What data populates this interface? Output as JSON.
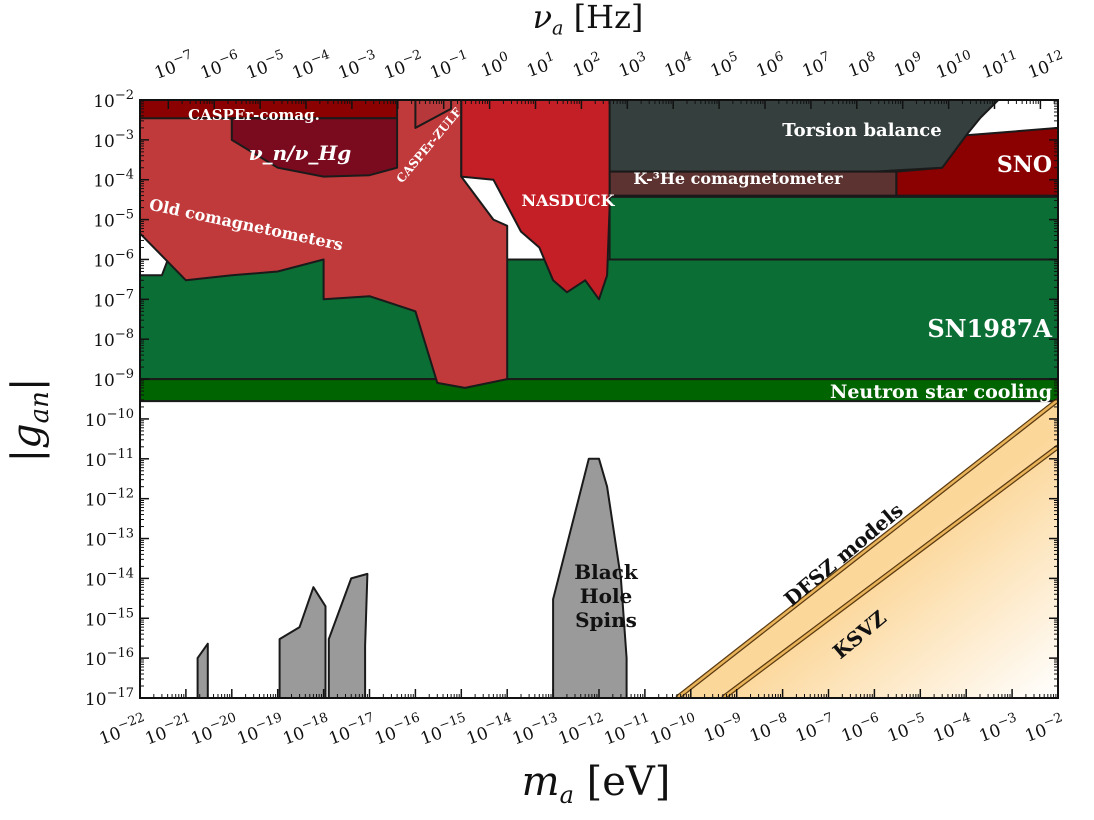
{
  "chart_data": {
    "type": "area",
    "xlabel": "m_a [eV]",
    "x2label": "ν_a [Hz]",
    "ylabel": "|g_an|",
    "x_scale": "log",
    "y_scale": "log",
    "xlim": [
      1e-22,
      0.01
    ],
    "ylim": [
      1e-17,
      0.01
    ],
    "x2lim": [
      1e-07,
      1000000000000.0
    ],
    "x_ticks": [
      "10^-22",
      "10^-21",
      "10^-20",
      "10^-19",
      "10^-18",
      "10^-17",
      "10^-16",
      "10^-15",
      "10^-14",
      "10^-13",
      "10^-12",
      "10^-11",
      "10^-10",
      "10^-9",
      "10^-8",
      "10^-7",
      "10^-6",
      "10^-5",
      "10^-4",
      "10^-3",
      "10^-2"
    ],
    "x2_ticks": [
      "10^-7",
      "10^-6",
      "10^-5",
      "10^-4",
      "10^-3",
      "10^-2",
      "10^-1",
      "10^0",
      "10^1",
      "10^2",
      "10^3",
      "10^4",
      "10^5",
      "10^6",
      "10^7",
      "10^8",
      "10^9",
      "10^10",
      "10^11",
      "10^12"
    ],
    "y_ticks": [
      "10^-17",
      "10^-16",
      "10^-15",
      "10^-14",
      "10^-13",
      "10^-12",
      "10^-11",
      "10^-10",
      "10^-9",
      "10^-8",
      "10^-7",
      "10^-6",
      "10^-5",
      "10^-4",
      "10^-3",
      "10^-2"
    ],
    "colors": {
      "neutron_star": "#006400",
      "sn1987a": "#0b6e35",
      "old_comag": "#c0393b",
      "nasduck": "#c41e26",
      "casper_comag": "#8b0000",
      "nu_n_nu_hg": "#7a0b1e",
      "casper_zulf": "#b7383a",
      "torsion": "#353f3e",
      "k3he": "#5c3330",
      "sno": "#8b0000",
      "bh": "#9a9a9a",
      "qcd_band": "#fcd79a"
    },
    "series": [
      {
        "name": "Neutron star cooling",
        "label": "Neutron star cooling",
        "type": "band",
        "x_range": [
          1e-22,
          0.01
        ],
        "y_range": [
          2.8e-10,
          1e-09
        ]
      },
      {
        "name": "SN1987A",
        "label": "SN1987A",
        "type": "region",
        "x": [
          1e-22,
          0.01
        ],
        "y_lower": 1e-09,
        "y_upper_points": [
          [
            1e-22,
            4e-07
          ],
          [
            3e-22,
            4e-07
          ],
          [
            5e-22,
            1.9e-06
          ],
          [
            2e-21,
            1.4e-06
          ],
          [
            1e-20,
            9e-07
          ],
          [
            1e-18,
            1e-06
          ],
          [
            1e-17,
            1e-06
          ],
          [
            1e-15,
            1e-06
          ],
          [
            1e-13,
            1e-06
          ],
          [
            1e-11,
            1e-06
          ],
          [
            1e-09,
            1e-06
          ],
          [
            0.01,
            1e-06
          ]
        ]
      },
      {
        "name": "SN1987A upper band",
        "type": "band",
        "x_range": [
          1.7e-12,
          0.01
        ],
        "y_range": [
          1e-06,
          3.7e-05
        ]
      },
      {
        "name": "Old comagnetometers",
        "label": "Old comagnetometers",
        "type": "region",
        "points": [
          [
            1e-22,
            4.5e-06
          ],
          [
            1e-22,
            0.01
          ],
          [
            1e-15,
            0.01
          ],
          [
            1e-15,
            0.00012
          ],
          [
            5e-15,
            1e-05
          ],
          [
            1e-14,
            7e-06
          ],
          [
            1e-14,
            1e-09
          ],
          [
            1.2e-15,
            6e-10
          ],
          [
            3e-16,
            8e-10
          ],
          [
            1e-16,
            5e-08
          ],
          [
            1e-17,
            1.2e-07
          ],
          [
            1e-18,
            1e-07
          ],
          [
            1e-18,
            1e-06
          ],
          [
            1e-19,
            5e-07
          ],
          [
            1e-20,
            4e-07
          ],
          [
            1e-21,
            3e-07
          ],
          [
            1e-22,
            4.5e-06
          ]
        ]
      },
      {
        "name": "NASDUCK",
        "label": "NASDUCK",
        "type": "region",
        "points": [
          [
            1e-15,
            0.01
          ],
          [
            1.7e-12,
            0.01
          ],
          [
            1.7e-12,
            2e-05
          ],
          [
            1.5e-12,
            4e-07
          ],
          [
            1e-12,
            1e-07
          ],
          [
            5e-13,
            3e-07
          ],
          [
            2e-13,
            1.5e-07
          ],
          [
            1e-13,
            3e-07
          ],
          [
            5e-14,
            2e-06
          ],
          [
            2e-14,
            5e-06
          ],
          [
            5e-15,
            0.0001
          ],
          [
            1e-15,
            0.00012
          ]
        ]
      },
      {
        "name": "CASPEr-comag.",
        "label": "CASPEr-comag.",
        "type": "band",
        "x_range": [
          1e-22,
          4e-17
        ],
        "y_range": [
          0.0035,
          0.01
        ]
      },
      {
        "name": "ν_n/ν_Hg",
        "label": "ν_n/ν_Hg",
        "type": "region",
        "points": [
          [
            1e-20,
            0.0035
          ],
          [
            4e-17,
            0.0035
          ],
          [
            4e-17,
            0.0002
          ],
          [
            1e-17,
            0.00013
          ],
          [
            1e-18,
            0.00012
          ],
          [
            1e-19,
            0.0002
          ],
          [
            1e-20,
            0.001
          ]
        ]
      },
      {
        "name": "CASPEr-ZULF",
        "label": "CASPEr-ZULF",
        "type": "region",
        "points": [
          [
            1e-16,
            0.01
          ],
          [
            6e-16,
            0.01
          ],
          [
            6e-16,
            0.006
          ],
          [
            1e-16,
            0.002
          ]
        ]
      },
      {
        "name": "Torsion balance",
        "label": "Torsion balance",
        "type": "region",
        "points": [
          [
            1.7e-12,
            0.01
          ],
          [
            0.0005,
            0.01
          ],
          [
            0.0002,
            0.0035
          ],
          [
            0.0001,
            0.0013
          ],
          [
            3e-05,
            0.0002
          ],
          [
            1e-06,
            0.00016
          ],
          [
            1e-08,
            0.00016
          ],
          [
            1.7e-12,
            0.00016
          ]
        ]
      },
      {
        "name": "K-3He comagnetometer",
        "label": "K-³He comagnetometer",
        "type": "band",
        "x_range": [
          1.7e-12,
          3e-06
        ],
        "y_range": [
          4e-05,
          0.00016
        ]
      },
      {
        "name": "SNO",
        "label": "SNO",
        "type": "region",
        "points": [
          [
            3e-06,
            4e-05
          ],
          [
            0.01,
            4e-05
          ],
          [
            0.01,
            0.002
          ],
          [
            0.0001,
            0.0013
          ],
          [
            3e-05,
            0.0002
          ],
          [
            3e-06,
            0.00016
          ]
        ]
      },
      {
        "name": "Black Hole Spins",
        "label": "Black Hole Spins",
        "type": "region",
        "points": [
          [
            1e-13,
            1e-17
          ],
          [
            1e-13,
            3e-15
          ],
          [
            6e-13,
            1e-11
          ],
          [
            1e-12,
            1e-11
          ],
          [
            1.5e-12,
            2e-12
          ],
          [
            3e-12,
            1e-14
          ],
          [
            4e-12,
            1e-16
          ],
          [
            4e-12,
            1e-17
          ]
        ]
      },
      {
        "name": "BH spin 1",
        "type": "region",
        "points": [
          [
            1.8e-21,
            1e-17
          ],
          [
            1.8e-21,
            1e-16
          ],
          [
            3e-21,
            2.3e-16
          ],
          [
            3e-21,
            1e-17
          ]
        ]
      },
      {
        "name": "BH spin 2",
        "type": "region",
        "points": [
          [
            1.1e-19,
            1e-17
          ],
          [
            1.1e-19,
            3e-16
          ],
          [
            3e-19,
            6e-16
          ],
          [
            6e-19,
            6e-15
          ],
          [
            1.1e-18,
            2e-15
          ],
          [
            1.1e-18,
            1e-17
          ]
        ]
      },
      {
        "name": "BH spin 3",
        "type": "region",
        "points": [
          [
            1.3e-18,
            1e-17
          ],
          [
            1.3e-18,
            3e-16
          ],
          [
            4e-18,
            1e-14
          ],
          [
            9e-18,
            1.3e-14
          ],
          [
            8e-18,
            2e-16
          ],
          [
            8e-18,
            1e-17
          ]
        ]
      },
      {
        "name": "DFSZ models",
        "label": "DFSZ models",
        "type": "line",
        "points": [
          [
            5e-11,
            1e-17
          ],
          [
            0.01,
            3e-10
          ]
        ]
      },
      {
        "name": "KSVZ",
        "label": "KSVZ",
        "type": "line",
        "points": [
          [
            5e-10,
            1e-17
          ],
          [
            0.01,
            2e-11
          ]
        ]
      }
    ]
  }
}
